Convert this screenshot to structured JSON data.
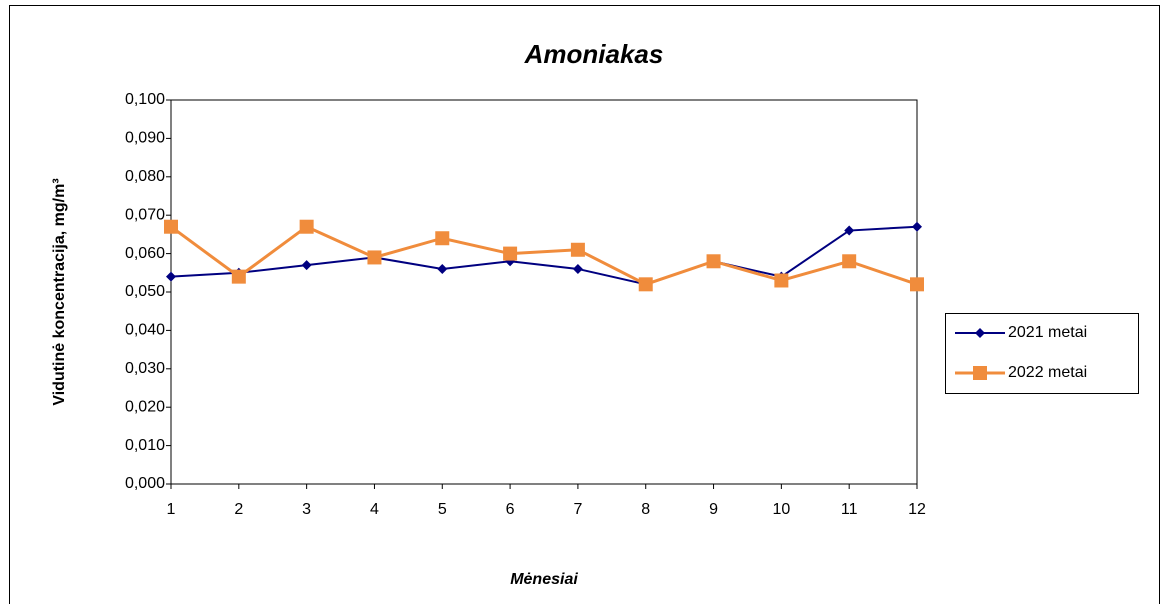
{
  "chart_data": {
    "type": "line",
    "title": "Amoniakas",
    "xlabel": "Mėnesiai",
    "ylabel": "Vidutinė koncentracija, mg/m³",
    "x": [
      1,
      2,
      3,
      4,
      5,
      6,
      7,
      8,
      9,
      10,
      11,
      12
    ],
    "series": [
      {
        "name": "2021 metai",
        "color": "#000080",
        "marker": "diamond",
        "values": [
          0.054,
          0.055,
          0.057,
          0.059,
          0.056,
          0.058,
          0.056,
          0.052,
          0.058,
          0.054,
          0.066,
          0.067
        ]
      },
      {
        "name": "2022 metai",
        "color": "#f08c3c",
        "marker": "square",
        "values": [
          0.067,
          0.054,
          0.067,
          0.059,
          0.064,
          0.06,
          0.061,
          0.052,
          0.058,
          0.053,
          0.058,
          0.052
        ]
      }
    ],
    "xlim": [
      1,
      12
    ],
    "xticks": [
      1,
      2,
      3,
      4,
      5,
      6,
      7,
      8,
      9,
      10,
      11,
      12
    ],
    "ylim": [
      0,
      0.1
    ],
    "yticks": [
      {
        "value": 0,
        "label": "0,000"
      },
      {
        "value": 0.01,
        "label": "0,010"
      },
      {
        "value": 0.02,
        "label": "0,020"
      },
      {
        "value": 0.03,
        "label": "0,030"
      },
      {
        "value": 0.04,
        "label": "0,040"
      },
      {
        "value": 0.05,
        "label": "0,050"
      },
      {
        "value": 0.06,
        "label": "0,060"
      },
      {
        "value": 0.07,
        "label": "0,070"
      },
      {
        "value": 0.08,
        "label": "0,080"
      },
      {
        "value": 0.09,
        "label": "0,090"
      },
      {
        "value": 0.1,
        "label": "0,100"
      }
    ],
    "grid": false,
    "legend": "right"
  }
}
